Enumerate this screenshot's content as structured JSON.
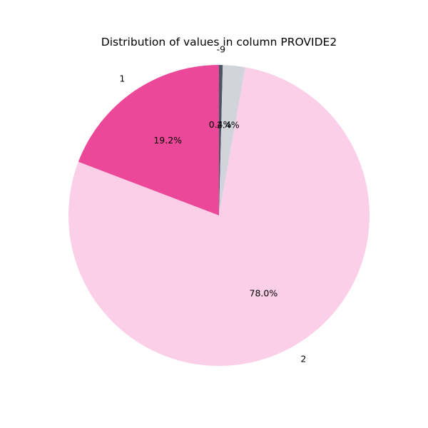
{
  "chart_data": {
    "type": "pie",
    "title": "Distribution of values in column PROVIDE2",
    "start_angle_deg": 90,
    "direction": "clockwise",
    "slices": [
      {
        "label": "-9",
        "pct_label": "0.4%",
        "value": 0.4,
        "color": "#4b5563"
      },
      {
        "label": "",
        "pct_label": "2.4%",
        "value": 2.4,
        "color": "#d1d5db"
      },
      {
        "label": "2",
        "pct_label": "78.0%",
        "value": 78.0,
        "color": "#fbcfe8"
      },
      {
        "label": "1",
        "pct_label": "19.2%",
        "value": 19.2,
        "color": "#ec4899"
      }
    ],
    "legend": "none"
  }
}
